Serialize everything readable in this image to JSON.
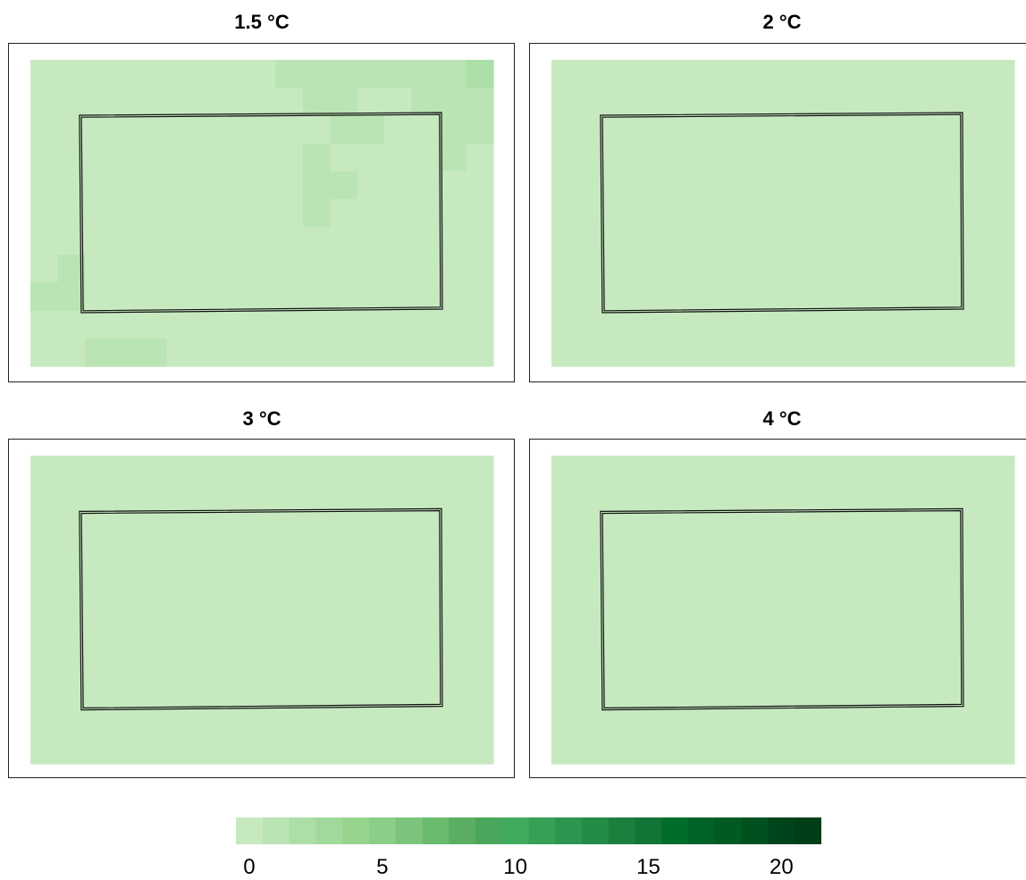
{
  "chart_data": [
    {
      "type": "heatmap",
      "title": "1.5 °C",
      "grid_rows": 11,
      "grid_cols": 17,
      "values": [
        [
          0,
          0,
          0,
          0,
          0,
          0,
          0,
          0,
          0.5,
          1,
          1.5,
          1.5,
          1,
          1.5,
          1.5,
          1.5,
          2
        ],
        [
          0,
          0,
          0,
          0,
          0,
          0,
          0,
          0,
          0,
          0,
          1,
          1.5,
          0.5,
          0.5,
          1,
          1,
          1.5
        ],
        [
          0,
          0,
          0,
          0,
          0,
          0,
          0,
          0,
          0,
          0,
          0,
          1,
          1,
          0,
          0.5,
          1,
          1
        ],
        [
          0,
          0,
          0,
          0,
          0,
          0,
          0,
          0,
          0,
          0,
          1,
          0.5,
          0,
          0,
          0,
          1,
          0
        ],
        [
          0,
          0,
          0,
          0,
          0,
          0,
          0,
          0,
          0,
          0.5,
          1.5,
          1.5,
          0,
          0,
          0,
          0,
          0.5
        ],
        [
          0,
          0,
          0,
          0,
          0,
          0,
          0,
          0,
          0,
          0.5,
          1,
          0.5,
          0,
          0,
          0,
          0,
          0.5
        ],
        [
          0,
          0,
          0,
          0,
          0,
          0,
          0,
          0,
          0,
          0,
          0.5,
          0,
          0,
          0,
          0,
          0.5,
          0.5
        ],
        [
          0,
          1,
          0,
          0,
          0,
          0,
          0,
          0,
          0,
          0,
          0,
          0,
          0,
          0,
          0,
          0.5,
          0.5
        ],
        [
          1,
          1,
          0,
          0,
          0,
          0,
          0,
          0,
          0,
          0,
          0,
          0,
          0,
          0,
          0,
          0,
          0
        ],
        [
          0.5,
          0,
          0,
          0.5,
          0,
          0.5,
          0,
          0,
          0,
          0,
          0,
          0,
          0,
          0,
          0,
          0,
          0
        ],
        [
          0.5,
          0.5,
          1,
          1,
          1,
          0,
          0,
          0,
          0,
          0,
          0,
          0.5,
          0,
          0,
          0,
          0,
          0
        ]
      ]
    },
    {
      "type": "heatmap",
      "title": "2 °C",
      "grid_rows": 1,
      "grid_cols": 1,
      "values": [
        [
          0
        ]
      ]
    },
    {
      "type": "heatmap",
      "title": "3 °C",
      "grid_rows": 1,
      "grid_cols": 1,
      "values": [
        [
          0
        ]
      ]
    },
    {
      "type": "heatmap",
      "title": "4 °C",
      "grid_rows": 1,
      "grid_cols": 1,
      "values": [
        [
          0
        ]
      ]
    }
  ],
  "colorbar": {
    "min": 0,
    "max": 22,
    "ticks": [
      "0",
      "5",
      "10",
      "15",
      "20"
    ],
    "colors": [
      "#c7e9c0",
      "#bae4b3",
      "#acdea7",
      "#a1d99b",
      "#97d58f",
      "#8ace88",
      "#7cc47b",
      "#6bbb6f",
      "#5aae61",
      "#4aa65a",
      "#41ab5d",
      "#36a055",
      "#2c9650",
      "#238b45",
      "#1c7f3e",
      "#137437",
      "#006d2c",
      "#006227",
      "#005a22",
      "#00511f",
      "#00441b",
      "#003e18"
    ]
  }
}
